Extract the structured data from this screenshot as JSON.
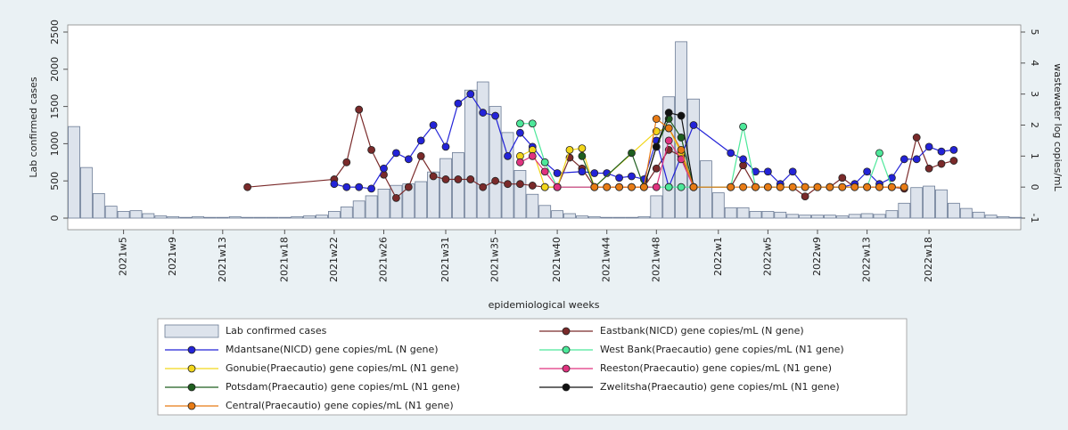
{
  "chart_data": {
    "type": "combo",
    "y_label": "Lab confirmed cases",
    "y2_label": "wastewater log copies/mL",
    "x_label": "epidemiological weeks",
    "categories": [
      null,
      null,
      null,
      null,
      "2021w5",
      null,
      null,
      null,
      "2021w9",
      null,
      null,
      null,
      "2021w13",
      null,
      null,
      null,
      null,
      "2021w18",
      null,
      null,
      null,
      "2021w22",
      null,
      null,
      null,
      "2021w26",
      null,
      null,
      null,
      null,
      "2021w31",
      null,
      null,
      null,
      "2021w35",
      null,
      null,
      null,
      null,
      "2021w40",
      null,
      null,
      null,
      "2021w44",
      null,
      null,
      null,
      "2021w48",
      null,
      null,
      null,
      null,
      "2022w1",
      null,
      null,
      null,
      "2022w5",
      null,
      null,
      null,
      "2022w9",
      null,
      null,
      null,
      "2022w13",
      null,
      null,
      null,
      null,
      "2022w18",
      null,
      null,
      null,
      null,
      null,
      null,
      null
    ],
    "ylim": [
      0,
      2500
    ],
    "yticks": [
      0,
      500,
      1000,
      1500,
      2000,
      2500
    ],
    "y2lim": [
      -1,
      5
    ],
    "y2ticks": [
      -1,
      0,
      1,
      2,
      3,
      4,
      5
    ],
    "series": [
      {
        "name": "Lab confirmed cases",
        "type": "bar",
        "color": "#dde3ec",
        "values": [
          1230,
          680,
          330,
          160,
          90,
          100,
          60,
          30,
          20,
          10,
          20,
          10,
          10,
          20,
          10,
          10,
          10,
          10,
          20,
          30,
          40,
          90,
          150,
          230,
          300,
          390,
          440,
          460,
          490,
          620,
          800,
          880,
          1720,
          1830,
          1500,
          1150,
          640,
          320,
          170,
          100,
          60,
          30,
          20,
          10,
          10,
          10,
          20,
          300,
          1630,
          2370,
          1600,
          770,
          340,
          140,
          140,
          90,
          90,
          80,
          50,
          40,
          40,
          40,
          30,
          50,
          60,
          50,
          100,
          200,
          410,
          430,
          380,
          200,
          130,
          80,
          40,
          20,
          10
        ]
      },
      {
        "name": "Eastbank(NICD) gene copies/mL (N gene)",
        "type": "line",
        "axis": "y2",
        "color": "#7a2a2a",
        "values": [
          null,
          null,
          null,
          null,
          null,
          null,
          null,
          null,
          null,
          null,
          null,
          null,
          null,
          null,
          0,
          null,
          null,
          null,
          null,
          null,
          null,
          0.25,
          0.8,
          2.5,
          1.2,
          0.4,
          -0.35,
          0,
          1.0,
          0.35,
          0.25,
          0.25,
          0.25,
          0,
          0.2,
          0.1,
          0.1,
          0.05,
          0,
          0,
          0.95,
          0.6,
          0,
          0,
          0,
          0,
          0,
          0.6,
          1.2,
          1.0,
          0,
          null,
          null,
          0,
          0.7,
          0,
          0,
          0,
          0,
          -0.3,
          0,
          0,
          0.3,
          0,
          0,
          0,
          0,
          -0.05,
          1.6,
          0.6,
          0.75,
          0.85,
          null,
          null,
          null,
          null,
          null
        ]
      },
      {
        "name": "Mdantsane(NICD) gene copies/mL (N gene)",
        "type": "line",
        "axis": "y2",
        "color": "#2323d8",
        "values": [
          null,
          null,
          null,
          null,
          null,
          null,
          null,
          null,
          null,
          null,
          null,
          null,
          null,
          null,
          null,
          null,
          null,
          null,
          null,
          null,
          null,
          0.1,
          0,
          0,
          -0.05,
          0.6,
          1.1,
          0.9,
          1.5,
          2.0,
          1.3,
          2.7,
          3.0,
          2.4,
          2.3,
          1.0,
          1.75,
          1.3,
          0.8,
          0.45,
          null,
          0.5,
          0.45,
          0.45,
          0.3,
          0.35,
          0.25,
          1.5,
          0,
          null,
          2.0,
          null,
          null,
          1.1,
          0.9,
          0.5,
          0.5,
          0.1,
          0.5,
          0,
          0,
          0,
          0,
          0.1,
          0.5,
          0.1,
          0.3,
          0.9,
          0.9,
          1.3,
          1.15,
          1.2,
          null,
          null,
          null,
          null,
          null
        ]
      },
      {
        "name": "West Bank(Praecautio) gene copies/mL (N1 gene)",
        "type": "line",
        "axis": "y2",
        "color": "#4de89a",
        "values": [
          null,
          null,
          null,
          null,
          null,
          null,
          null,
          null,
          null,
          null,
          null,
          null,
          null,
          null,
          null,
          null,
          null,
          null,
          null,
          null,
          null,
          null,
          null,
          null,
          null,
          null,
          null,
          null,
          null,
          null,
          null,
          null,
          null,
          null,
          null,
          null,
          2.05,
          2.05,
          0.8,
          0,
          null,
          null,
          null,
          null,
          null,
          null,
          null,
          null,
          0,
          0,
          null,
          null,
          null,
          0,
          1.95,
          0,
          null,
          null,
          null,
          null,
          null,
          null,
          null,
          null,
          0,
          1.1,
          0,
          null,
          null,
          null,
          null,
          null,
          null,
          null,
          null,
          null,
          null
        ]
      },
      {
        "name": "Gonubie(Praecautio) gene copies/mL (N1 gene)",
        "type": "line",
        "axis": "y2",
        "color": "#f2d61a",
        "values": [
          null,
          null,
          null,
          null,
          null,
          null,
          null,
          null,
          null,
          null,
          null,
          null,
          null,
          null,
          null,
          null,
          null,
          null,
          null,
          null,
          null,
          null,
          null,
          null,
          null,
          null,
          null,
          null,
          null,
          null,
          null,
          null,
          null,
          null,
          null,
          null,
          1.0,
          1.2,
          0,
          0,
          1.2,
          1.25,
          0,
          null,
          null,
          null,
          null,
          1.8,
          1.9,
          1.1,
          0,
          null,
          null,
          null,
          null,
          null,
          null,
          null,
          null,
          null,
          null,
          null,
          null,
          null,
          null,
          null,
          null,
          null,
          null,
          null,
          null,
          null,
          null,
          null,
          null,
          null,
          null
        ]
      },
      {
        "name": "Reeston(Praecautio) gene copies/mL (N1 gene)",
        "type": "line",
        "axis": "y2",
        "color": "#e0337f",
        "values": [
          null,
          null,
          null,
          null,
          null,
          null,
          null,
          null,
          null,
          null,
          null,
          null,
          null,
          null,
          null,
          null,
          null,
          null,
          null,
          null,
          null,
          null,
          null,
          null,
          null,
          null,
          null,
          null,
          null,
          null,
          null,
          null,
          null,
          null,
          null,
          null,
          0.8,
          1.0,
          0.5,
          0,
          null,
          null,
          null,
          null,
          null,
          null,
          null,
          0,
          1.5,
          0.9,
          0,
          null,
          null,
          null,
          null,
          null,
          null,
          null,
          null,
          null,
          null,
          null,
          null,
          null,
          null,
          null,
          null,
          null,
          null,
          null,
          null,
          null,
          null,
          null,
          null,
          null,
          null
        ]
      },
      {
        "name": "Potsdam(Praecautio) gene copies/mL (N1 gene)",
        "type": "line",
        "axis": "y2",
        "color": "#1e5e1e",
        "values": [
          null,
          null,
          null,
          null,
          null,
          null,
          null,
          null,
          null,
          null,
          null,
          null,
          null,
          null,
          null,
          null,
          null,
          null,
          null,
          null,
          null,
          null,
          null,
          null,
          null,
          null,
          null,
          null,
          null,
          null,
          null,
          null,
          null,
          null,
          null,
          null,
          null,
          null,
          null,
          null,
          null,
          1.0,
          0,
          null,
          null,
          1.1,
          0,
          1.3,
          2.2,
          1.6,
          0,
          null,
          null,
          null,
          null,
          null,
          null,
          null,
          null,
          null,
          null,
          null,
          null,
          null,
          null,
          null,
          null,
          null,
          null,
          null,
          null,
          null,
          null,
          null,
          null,
          null,
          null
        ]
      },
      {
        "name": "Zwelitsha(Praecautio) gene copies/mL (N1 gene)",
        "type": "line",
        "axis": "y2",
        "color": "#111111",
        "values": [
          null,
          null,
          null,
          null,
          null,
          null,
          null,
          null,
          null,
          null,
          null,
          null,
          null,
          null,
          null,
          null,
          null,
          null,
          null,
          null,
          null,
          null,
          null,
          null,
          null,
          null,
          null,
          null,
          null,
          null,
          null,
          null,
          null,
          null,
          null,
          null,
          null,
          null,
          null,
          null,
          null,
          null,
          null,
          null,
          null,
          null,
          0,
          1.3,
          2.4,
          2.3,
          0,
          null,
          null,
          null,
          null,
          null,
          null,
          null,
          null,
          null,
          null,
          null,
          null,
          null,
          null,
          null,
          null,
          null,
          null,
          null,
          null,
          null,
          null,
          null,
          null,
          null,
          null
        ]
      },
      {
        "name": "Central(Praecautio) gene copies/mL (N1 gene)",
        "type": "line",
        "axis": "y2",
        "color": "#e87b14",
        "values": [
          null,
          null,
          null,
          null,
          null,
          null,
          null,
          null,
          null,
          null,
          null,
          null,
          null,
          null,
          null,
          null,
          null,
          null,
          null,
          null,
          null,
          null,
          null,
          null,
          null,
          null,
          null,
          null,
          null,
          null,
          null,
          null,
          null,
          null,
          null,
          null,
          null,
          null,
          null,
          null,
          null,
          null,
          0,
          0,
          0,
          0,
          0,
          2.2,
          1.9,
          1.2,
          0,
          null,
          null,
          0,
          0,
          0,
          0,
          0,
          0,
          0,
          0,
          0,
          0,
          0,
          0,
          0,
          0,
          0,
          null,
          null,
          null,
          null,
          null,
          null,
          null,
          null,
          null
        ]
      }
    ]
  }
}
